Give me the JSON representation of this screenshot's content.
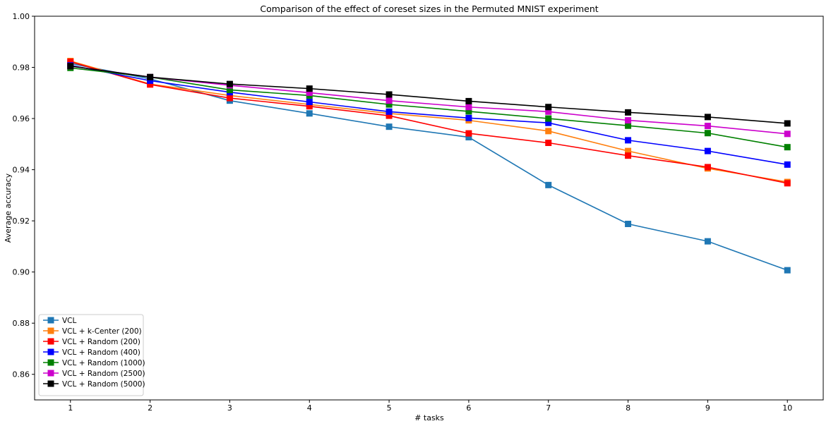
{
  "chart_data": {
    "type": "line",
    "title": "Comparison of the effect of coreset sizes in the Permuted MNIST experiment",
    "xlabel": "# tasks",
    "ylabel": "Average accuracy",
    "x": [
      1,
      2,
      3,
      4,
      5,
      6,
      7,
      8,
      9,
      10
    ],
    "xlim": [
      0.55,
      10.45
    ],
    "ylim": [
      0.85,
      1.0
    ],
    "yticks": [
      0.86,
      0.88,
      0.9,
      0.92,
      0.94,
      0.96,
      0.98,
      1.0
    ],
    "ytick_labels": [
      "0.86",
      "0.88",
      "0.90",
      "0.92",
      "0.94",
      "0.96",
      "0.98",
      "1.00"
    ],
    "xtick_labels": [
      "1",
      "2",
      "3",
      "4",
      "5",
      "6",
      "7",
      "8",
      "9",
      "10"
    ],
    "grid": false,
    "legend_position": "lower-left",
    "marker": "square",
    "series": [
      {
        "name": "VCL",
        "color": "#1f77b4",
        "values": [
          0.9815,
          0.9755,
          0.967,
          0.962,
          0.9568,
          0.9527,
          0.934,
          0.9188,
          0.912,
          0.9007
        ]
      },
      {
        "name": "VCL + k-Center (200)",
        "color": "#ff7f0e",
        "values": [
          0.9825,
          0.9735,
          0.969,
          0.9655,
          0.962,
          0.9593,
          0.9551,
          0.9473,
          0.9405,
          0.9352
        ]
      },
      {
        "name": "VCL + Random (200)",
        "color": "#ff0000",
        "values": [
          0.9822,
          0.9733,
          0.968,
          0.9648,
          0.9611,
          0.9542,
          0.9505,
          0.9455,
          0.941,
          0.9347
        ]
      },
      {
        "name": "VCL + Random (400)",
        "color": "#0000ff",
        "values": [
          0.9808,
          0.9748,
          0.9703,
          0.9665,
          0.9627,
          0.9602,
          0.9583,
          0.9515,
          0.9473,
          0.942
        ]
      },
      {
        "name": "VCL + Random (1000)",
        "color": "#008000",
        "values": [
          0.9798,
          0.9762,
          0.9712,
          0.969,
          0.9655,
          0.9628,
          0.96,
          0.9572,
          0.9543,
          0.9488
        ]
      },
      {
        "name": "VCL + Random (2500)",
        "color": "#cc00cc",
        "values": [
          0.9805,
          0.9762,
          0.973,
          0.9701,
          0.967,
          0.9645,
          0.9627,
          0.9593,
          0.9571,
          0.954
        ]
      },
      {
        "name": "VCL + Random (5000)",
        "color": "#000000",
        "values": [
          0.9805,
          0.9762,
          0.9735,
          0.9717,
          0.9694,
          0.9668,
          0.9645,
          0.9624,
          0.9606,
          0.9581
        ]
      }
    ]
  }
}
